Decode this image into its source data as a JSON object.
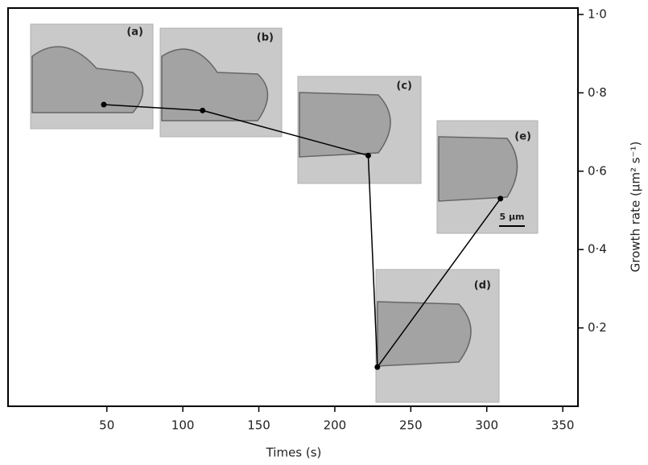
{
  "chart_data": {
    "type": "line",
    "x_label": "Times (s)",
    "y_label": "Growth rate (µm² s⁻¹)",
    "x": [
      48,
      113,
      222,
      228,
      309
    ],
    "series": [
      {
        "color": "#000000",
        "values": [
          0.77,
          0.755,
          0.64,
          0.1,
          0.53
        ]
      }
    ],
    "xlim": [
      -15,
      360
    ],
    "xticks": [
      50,
      100,
      150,
      200,
      250,
      300,
      350
    ],
    "ylim": [
      0,
      1.0
    ],
    "yticks": [
      {
        "value": 0.2,
        "label": "0·2"
      },
      {
        "value": 0.4,
        "label": "0·4"
      },
      {
        "value": 0.6,
        "label": "0·6"
      },
      {
        "value": 0.8,
        "label": "0·8"
      },
      {
        "value": 1.0,
        "label": "1·0"
      }
    ],
    "y_axis_side": "right",
    "insets": [
      "(a)",
      "(b)",
      "(c)",
      "(d)",
      "(e)"
    ],
    "scale_bar": "5 µm"
  }
}
